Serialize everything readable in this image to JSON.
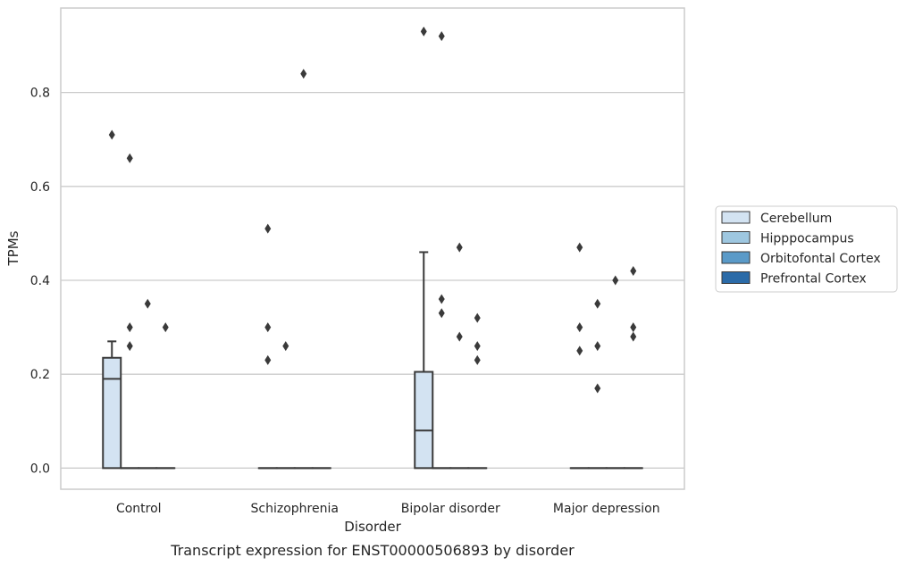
{
  "chart_data": {
    "type": "box",
    "caption": "Transcript expression for ENST00000506893 by disorder",
    "xlabel": "Disorder",
    "ylabel": "TPMs",
    "ylim": [
      -0.045,
      0.98
    ],
    "yticks": [
      0.0,
      0.2,
      0.4,
      0.6,
      0.8
    ],
    "ytick_labels": [
      "0.0",
      "0.2",
      "0.4",
      "0.6",
      "0.8"
    ],
    "grid": "horizontal",
    "legend_position": "right",
    "categories": [
      "Control",
      "Schizophrenia",
      "Bipolar disorder",
      "Major depression"
    ],
    "series": [
      {
        "name": "Cerebellum",
        "color": "#d3e3f2",
        "boxes": [
          {
            "q1": 0.0,
            "median": 0.19,
            "q3": 0.235,
            "whisker_low": 0.0,
            "whisker_high": 0.27,
            "outliers": [
              0.71
            ]
          },
          {
            "q1": 0.0,
            "median": 0.0,
            "q3": 0.0,
            "whisker_low": 0.0,
            "whisker_high": 0.0,
            "outliers": [
              0.51,
              0.3,
              0.23
            ]
          },
          {
            "q1": 0.0,
            "median": 0.08,
            "q3": 0.205,
            "whisker_low": 0.0,
            "whisker_high": 0.46,
            "outliers": [
              0.93
            ]
          },
          {
            "q1": 0.0,
            "median": 0.0,
            "q3": 0.0,
            "whisker_low": 0.0,
            "whisker_high": 0.0,
            "outliers": [
              0.47,
              0.3,
              0.25
            ]
          }
        ]
      },
      {
        "name": "Hipppocampus",
        "color": "#9ec7e0",
        "boxes": [
          {
            "q1": 0.0,
            "median": 0.0,
            "q3": 0.0,
            "whisker_low": 0.0,
            "whisker_high": 0.0,
            "outliers": [
              0.66,
              0.3,
              0.26
            ]
          },
          {
            "q1": 0.0,
            "median": 0.0,
            "q3": 0.0,
            "whisker_low": 0.0,
            "whisker_high": 0.0,
            "outliers": [
              0.26
            ]
          },
          {
            "q1": 0.0,
            "median": 0.0,
            "q3": 0.0,
            "whisker_low": 0.0,
            "whisker_high": 0.0,
            "outliers": [
              0.92,
              0.36,
              0.33
            ]
          },
          {
            "q1": 0.0,
            "median": 0.0,
            "q3": 0.0,
            "whisker_low": 0.0,
            "whisker_high": 0.0,
            "outliers": [
              0.35,
              0.26,
              0.17
            ]
          }
        ]
      },
      {
        "name": "Orbitofontal Cortex",
        "color": "#5a9ac8",
        "boxes": [
          {
            "q1": 0.0,
            "median": 0.0,
            "q3": 0.0,
            "whisker_low": 0.0,
            "whisker_high": 0.0,
            "outliers": [
              0.35
            ]
          },
          {
            "q1": 0.0,
            "median": 0.0,
            "q3": 0.0,
            "whisker_low": 0.0,
            "whisker_high": 0.0,
            "outliers": [
              0.84
            ]
          },
          {
            "q1": 0.0,
            "median": 0.0,
            "q3": 0.0,
            "whisker_low": 0.0,
            "whisker_high": 0.0,
            "outliers": [
              0.47,
              0.28
            ]
          },
          {
            "q1": 0.0,
            "median": 0.0,
            "q3": 0.0,
            "whisker_low": 0.0,
            "whisker_high": 0.0,
            "outliers": [
              0.4
            ]
          }
        ]
      },
      {
        "name": "Prefrontal Cortex",
        "color": "#2b6ba8",
        "boxes": [
          {
            "q1": 0.0,
            "median": 0.0,
            "q3": 0.0,
            "whisker_low": 0.0,
            "whisker_high": 0.0,
            "outliers": [
              0.3
            ]
          },
          {
            "q1": 0.0,
            "median": 0.0,
            "q3": 0.0,
            "whisker_low": 0.0,
            "whisker_high": 0.0,
            "outliers": []
          },
          {
            "q1": 0.0,
            "median": 0.0,
            "q3": 0.0,
            "whisker_low": 0.0,
            "whisker_high": 0.0,
            "outliers": [
              0.32,
              0.26,
              0.23
            ]
          },
          {
            "q1": 0.0,
            "median": 0.0,
            "q3": 0.0,
            "whisker_low": 0.0,
            "whisker_high": 0.0,
            "outliers": [
              0.42,
              0.3,
              0.28
            ]
          }
        ]
      }
    ]
  }
}
